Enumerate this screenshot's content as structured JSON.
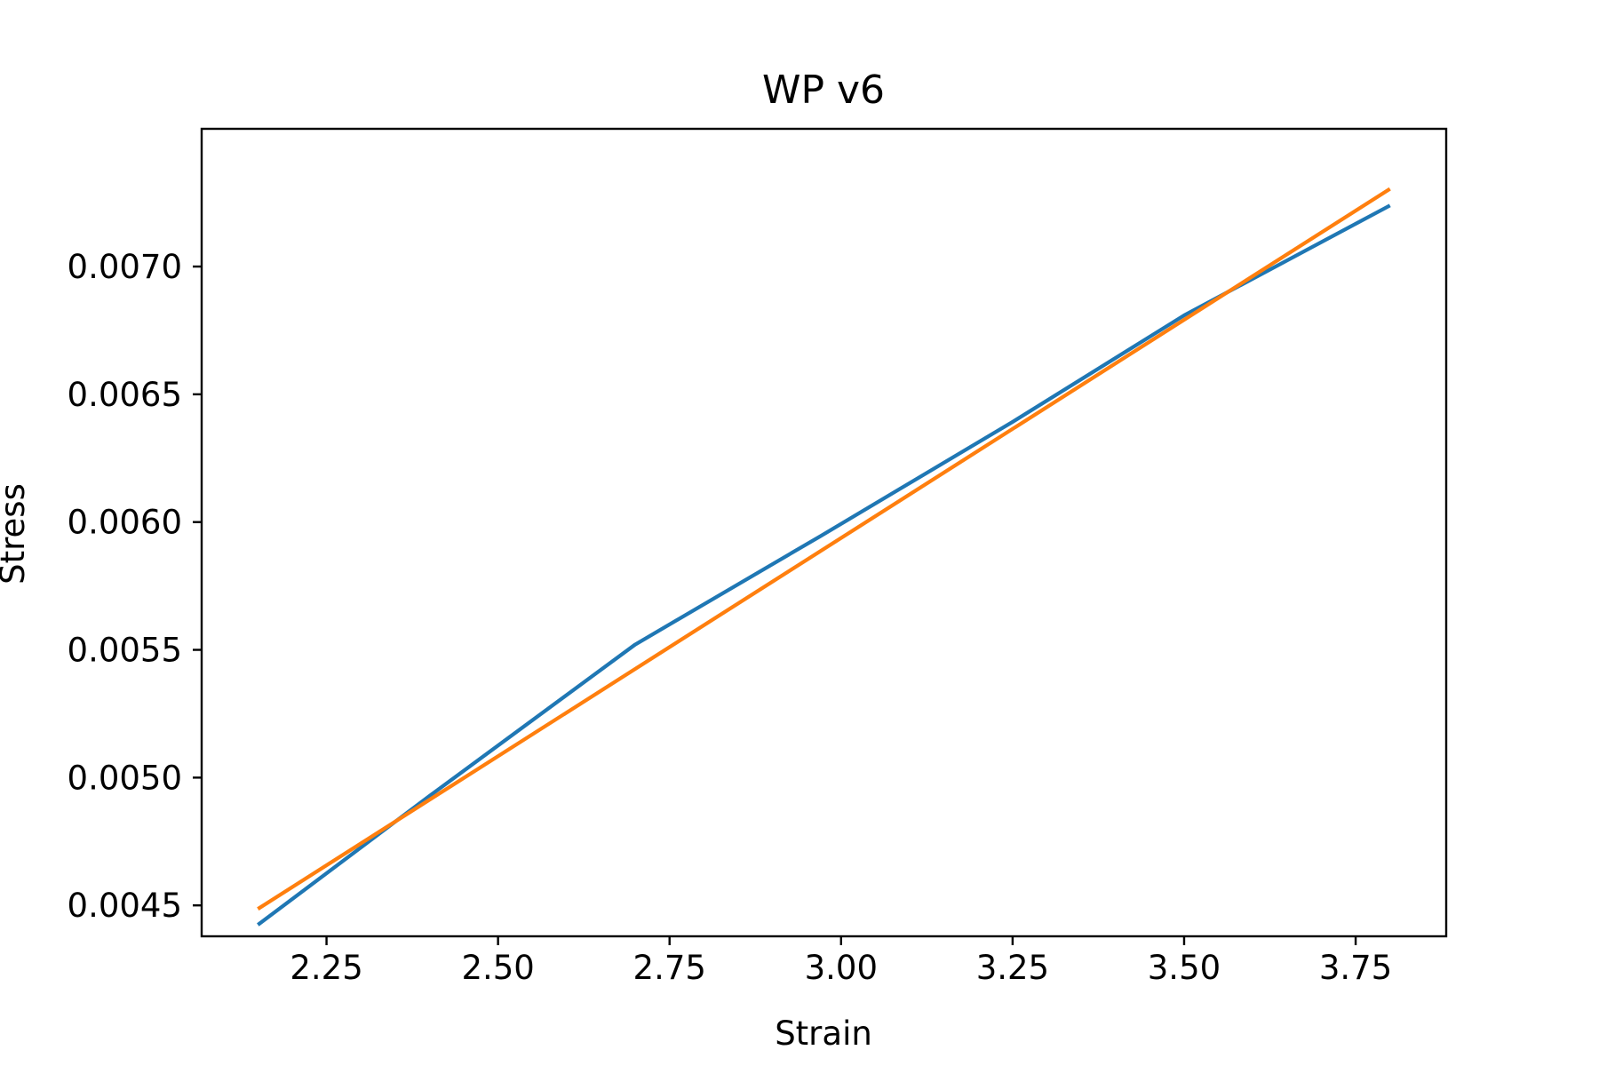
{
  "chart_data": {
    "type": "line",
    "title": "WP v6",
    "xlabel": "Strain",
    "ylabel": "Stress",
    "xlim": [
      2.068,
      3.882
    ],
    "ylim": [
      0.004379,
      0.007539
    ],
    "xticks": [
      2.25,
      2.5,
      2.75,
      3.0,
      3.25,
      3.5,
      3.75
    ],
    "xtick_labels": [
      "2.25",
      "2.50",
      "2.75",
      "3.00",
      "3.25",
      "3.50",
      "3.75"
    ],
    "yticks": [
      0.0045,
      0.005,
      0.0055,
      0.006,
      0.0065,
      0.007
    ],
    "ytick_labels": [
      "0.0045",
      "0.0050",
      "0.0055",
      "0.0060",
      "0.0065",
      "0.0070"
    ],
    "grid": false,
    "legend": "none",
    "series": [
      {
        "color": "#1f77b4",
        "x": [
          2.15,
          2.4,
          2.7,
          2.97,
          3.25,
          3.5,
          3.8
        ],
        "y": [
          0.004424,
          0.004928,
          0.005521,
          0.005945,
          0.006392,
          0.006809,
          0.007239
        ]
      },
      {
        "color": "#ff7f0e",
        "x": [
          2.15,
          3.8
        ],
        "y": [
          0.004486,
          0.007304
        ]
      }
    ]
  }
}
